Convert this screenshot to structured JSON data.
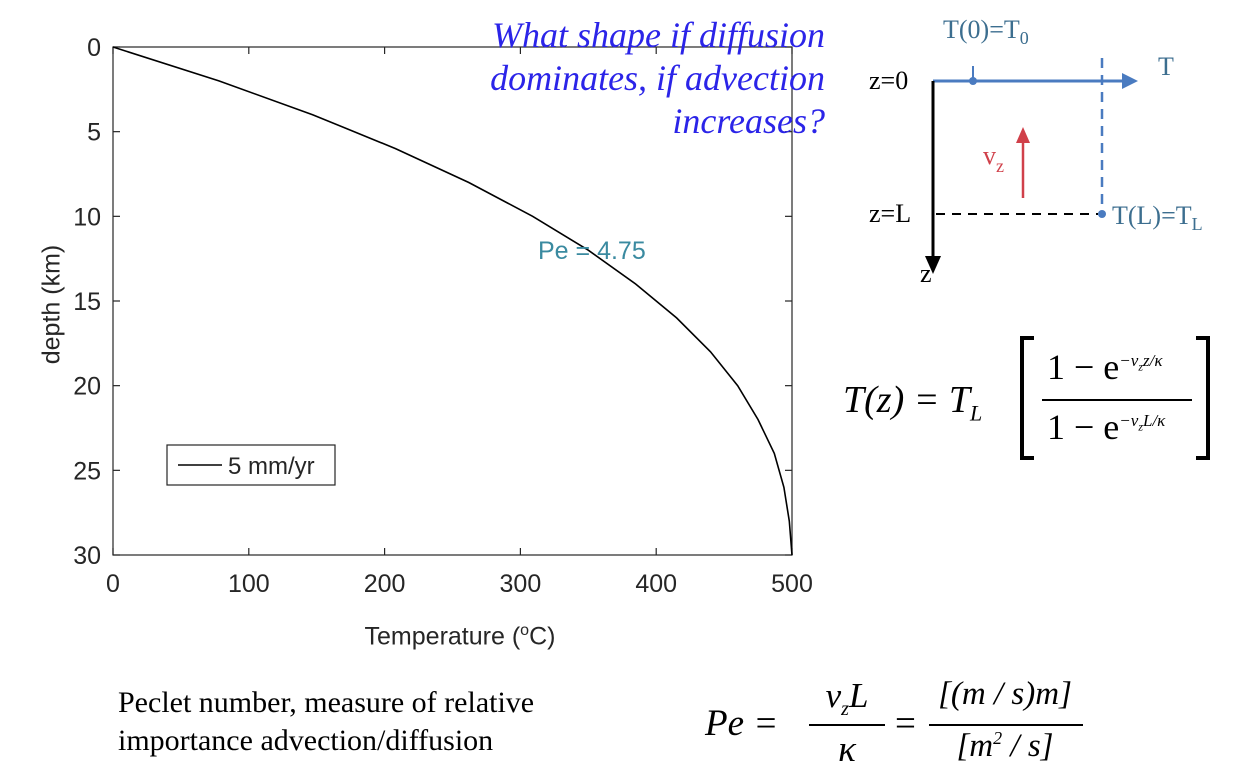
{
  "chart_data": {
    "type": "line",
    "title": "",
    "xlabel": "Temperature (",
    "xlabel_sup": "o",
    "xlabel_unit": "C)",
    "ylabel": "depth (km)",
    "xlim": [
      0,
      500
    ],
    "ylim": [
      0,
      30
    ],
    "y_reversed": true,
    "x_ticks": [
      0,
      100,
      200,
      300,
      400,
      500
    ],
    "y_ticks": [
      0,
      5,
      10,
      15,
      20,
      25,
      30
    ],
    "grid": false,
    "legend_position": "bottom-left",
    "annotation": "Pe = 4.75",
    "series": [
      {
        "name": "5 mm/yr",
        "color": "#000000",
        "points": [
          {
            "T": 0,
            "z": 0
          },
          {
            "T": 78,
            "z": 2
          },
          {
            "T": 147,
            "z": 4
          },
          {
            "T": 208,
            "z": 6
          },
          {
            "T": 262,
            "z": 8
          },
          {
            "T": 309,
            "z": 10
          },
          {
            "T": 350,
            "z": 12
          },
          {
            "T": 385,
            "z": 14
          },
          {
            "T": 415,
            "z": 16
          },
          {
            "T": 440,
            "z": 18
          },
          {
            "T": 460,
            "z": 20
          },
          {
            "T": 475,
            "z": 22
          },
          {
            "T": 487,
            "z": 24
          },
          {
            "T": 494,
            "z": 26
          },
          {
            "T": 498,
            "z": 28
          },
          {
            "T": 500,
            "z": 30
          }
        ]
      }
    ]
  },
  "question": {
    "line1": "What shape if diffusion",
    "line2": "dominates, if advection",
    "line3": "increases?"
  },
  "diagram": {
    "t0_label": "T(0)=T",
    "t0_sub": "0",
    "t_axis": "T",
    "z0": "z=0",
    "zL": "z=L",
    "z_axis": "z",
    "v_main": "v",
    "v_sub": "z",
    "tl_label": "T(L)=T",
    "tl_sub": "L",
    "blue": "#4a7bc0",
    "red": "#d0404a",
    "teal": "#3c6e8f"
  },
  "equation_temp": {
    "lhs": "T(z) = T",
    "lhs_sub": "L",
    "num": "1 − e",
    "num_exp": "−v",
    "num_exp_sub": "z",
    "num_exp_tail": "z/κ",
    "den": "1 − e",
    "den_exp": "−v",
    "den_exp_sub": "z",
    "den_exp_tail": "L/κ"
  },
  "footer": {
    "line1": "Peclet number, measure of relative",
    "line2": "importance advection/diffusion"
  },
  "equation_pe": {
    "lhs": "Pe =",
    "frac1_num": "v",
    "frac1_num_sub": "z",
    "frac1_num_tail": "L",
    "frac1_den": "κ",
    "eq": "=",
    "frac2_num": "[(m / s)m]",
    "frac2_den_a": "[m",
    "frac2_den_sup": "2",
    "frac2_den_b": " / s]"
  }
}
